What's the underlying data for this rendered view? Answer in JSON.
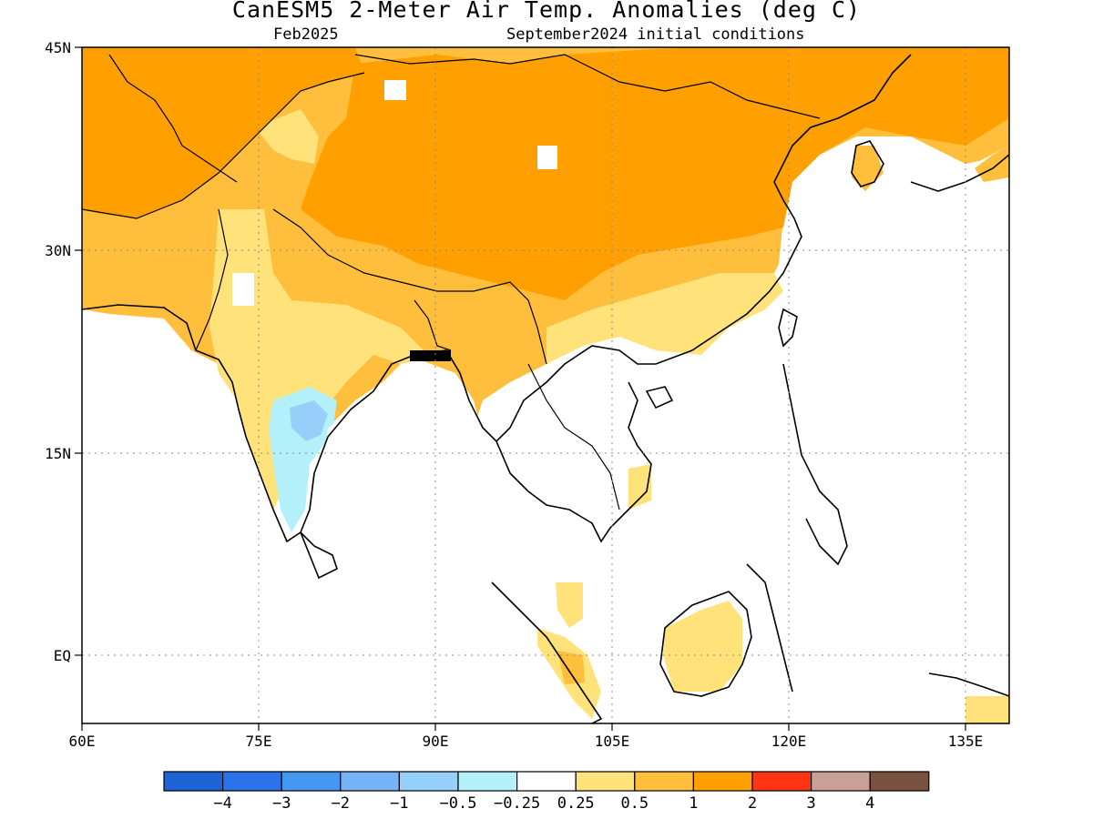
{
  "title": "CanESM5 2-Meter Air Temp. Anomalies (deg C)",
  "subtitle_left": "Feb2025",
  "subtitle_right": "September2024 initial conditions",
  "lon_labels": [
    "60E",
    "75E",
    "90E",
    "105E",
    "120E",
    "135E"
  ],
  "lat_labels": [
    "45N",
    "30N",
    "15N",
    "EQ"
  ],
  "colorbar": {
    "colors": [
      "#1d63d6",
      "#2c73ea",
      "#4498f2",
      "#76b4f7",
      "#96d0fa",
      "#b4f0fa",
      "#ffffff",
      "#ffe27a",
      "#ffbf3c",
      "#ffa000",
      "#ff3412",
      "#c8a096",
      "#7a5040"
    ],
    "labels": [
      "−4",
      "−3",
      "−2",
      "−1",
      "−0.5",
      "−0.25",
      "0.25",
      "0.5",
      "1",
      "2",
      "3",
      "4"
    ]
  }
}
